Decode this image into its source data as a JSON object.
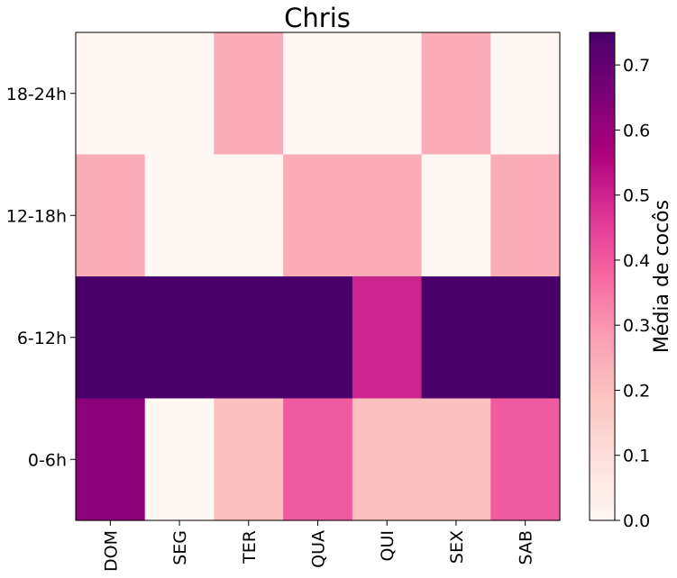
{
  "chart_data": {
    "type": "heatmap",
    "title": "Chris",
    "xlabel": "",
    "ylabel": "",
    "columns": [
      "DOM",
      "SEG",
      "TER",
      "QUA",
      "QUI",
      "SEX",
      "SAB"
    ],
    "rows": [
      "18-24h",
      "12-18h",
      "6-12h",
      "0-6h"
    ],
    "values": [
      [
        0.0,
        0.0,
        0.25,
        0.0,
        0.0,
        0.25,
        0.0
      ],
      [
        0.25,
        0.0,
        0.0,
        0.25,
        0.25,
        0.0,
        0.25
      ],
      [
        0.75,
        0.75,
        0.75,
        0.75,
        0.5,
        0.75,
        0.75
      ],
      [
        0.625,
        0.0,
        0.2,
        0.4,
        0.2,
        0.2,
        0.4
      ]
    ],
    "colorbar": {
      "label": "Média de cocôs",
      "range": [
        0.0,
        0.75
      ],
      "ticks": [
        "0.0",
        "0.1",
        "0.2",
        "0.3",
        "0.4",
        "0.5",
        "0.6",
        "0.7"
      ],
      "colormap": "RdPu"
    },
    "colors": {
      "scale": [
        "#fff7f3",
        "#fde0dd",
        "#fcc5c0",
        "#fa9fb5",
        "#f768a1",
        "#dd3497",
        "#ae017e",
        "#7a0177",
        "#49006a"
      ]
    }
  }
}
